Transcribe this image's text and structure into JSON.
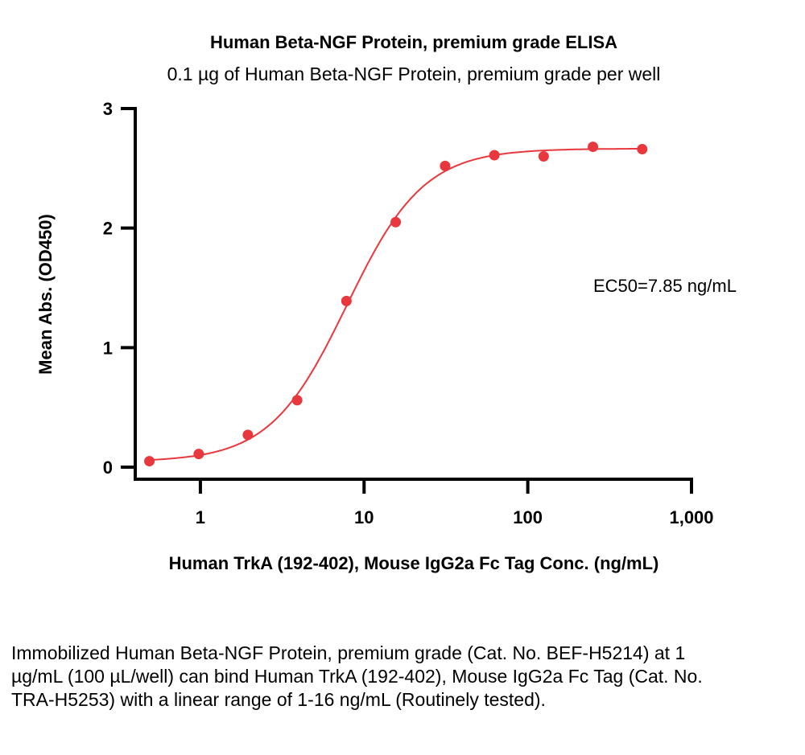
{
  "chart_data": {
    "type": "scatter",
    "title": "Human Beta-NGF Protein, premium grade ELISA",
    "subtitle": "0.1 µg of Human Beta-NGF Protein, premium grade per well",
    "xlabel": "Human TrkA (192-402), Mouse IgG2a Fc Tag Conc. (ng/mL)",
    "ylabel": "Mean Abs. (OD450)",
    "xscale": "log",
    "xlim": [
      0.4,
      1000
    ],
    "ylim": [
      0,
      3
    ],
    "xticks": [
      {
        "v": 1,
        "label": "1"
      },
      {
        "v": 10,
        "label": "10"
      },
      {
        "v": 100,
        "label": "100"
      },
      {
        "v": 1000,
        "label": "1,000"
      }
    ],
    "yticks": [
      {
        "v": 0,
        "label": "0"
      },
      {
        "v": 1,
        "label": "1"
      },
      {
        "v": 2,
        "label": "2"
      },
      {
        "v": 3,
        "label": "3"
      }
    ],
    "grid": false,
    "annotation": "EC50=7.85 ng/mL",
    "color": "#e8383d",
    "series": [
      {
        "x": [
          0.488,
          0.977,
          1.95,
          3.9,
          7.8,
          15.6,
          31.25,
          62.5,
          125,
          250,
          500
        ],
        "y": [
          0.05,
          0.11,
          0.27,
          0.56,
          1.39,
          2.05,
          2.52,
          2.61,
          2.6,
          2.68,
          2.66
        ]
      }
    ],
    "fit": "4-parameter logistic curve"
  },
  "caption": "Immobilized Human Beta-NGF Protein, premium grade (Cat. No. BEF-H5214) at 1 µg/mL (100 µL/well) can bind Human TrkA (192-402), Mouse IgG2a Fc Tag (Cat. No. TRA-H5253) with a linear range of 1-16 ng/mL (Routinely tested)."
}
